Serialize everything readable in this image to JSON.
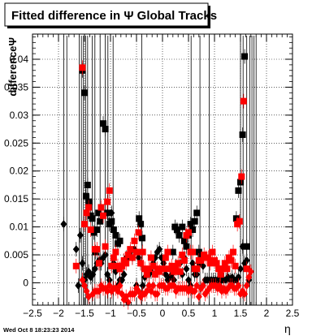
{
  "chart_data": {
    "type": "scatter",
    "title": "Fitted difference in  Ψ   Global Tracks",
    "ylabel": "differenceΨ",
    "xlabel": "η",
    "footer": "Wed Oct  8 18:23:23 2014",
    "xlim": [
      -2.5,
      2.5
    ],
    "ylim": [
      -0.004,
      0.0445
    ],
    "x_ticks": [
      "−2.5",
      "−2",
      "−1.5",
      "−1",
      "−0.5",
      "0",
      "0.5",
      "1",
      "1.5",
      "2",
      "2.5"
    ],
    "y_ticks": [
      "0",
      "0.005",
      "0.01",
      "0.015",
      "0.02",
      "0.025",
      "0.03",
      "0.035",
      "0.04"
    ],
    "grid": true,
    "series": [
      {
        "marker": "square",
        "color": "#000000",
        "x": [
          -1.54,
          -1.5,
          -1.47,
          -1.44,
          -1.41,
          -1.38,
          -1.35,
          -1.32,
          -1.29,
          -1.26,
          -1.23,
          -1.2,
          -1.14,
          -1.1,
          -1.06,
          -1.02,
          -0.98,
          -0.94,
          -0.9,
          -0.86,
          -0.82,
          -0.45,
          -0.42,
          -0.39,
          0.2,
          0.24,
          0.28,
          0.32,
          0.38,
          0.42,
          0.46,
          0.5,
          0.54,
          0.58,
          0.62,
          0.66,
          0.7,
          0.74,
          1.42,
          1.46,
          1.5,
          1.54,
          1.58,
          1.62
        ],
        "y": [
          0.038,
          0.034,
          0.0155,
          0.0175,
          0.0145,
          0.012,
          0.0115,
          0.009,
          0.0055,
          0.0095,
          0.0125,
          0.011,
          0.0285,
          0.0275,
          0.0125,
          0.0105,
          0.011,
          0.0095,
          0.0085,
          0.007,
          0.0075,
          0.0115,
          0.0105,
          0.008,
          0.0055,
          0.01,
          0.0095,
          0.0085,
          0.01,
          0.0075,
          0.0065,
          0.0085,
          0.0105,
          0.0095,
          0.011,
          0.0125,
          0.0055,
          0.0045,
          0.0115,
          0.0165,
          0.018,
          0.0265,
          0.0405,
          0.0065
        ]
      },
      {
        "marker": "square",
        "color": "#ff0000",
        "x": [
          -1.66,
          -1.54,
          -1.5,
          -1.46,
          -1.42,
          -1.38,
          -1.3,
          -1.26,
          -1.22,
          -1.18,
          -1.14,
          -1.1,
          -1.06,
          -1.02,
          -0.98,
          -0.94,
          -0.9,
          -0.86,
          -0.82,
          -0.78,
          -0.74,
          -0.7,
          -0.66,
          -0.62,
          -0.58,
          -0.54,
          -0.5,
          -0.46,
          -0.42,
          -0.38,
          -0.34,
          -0.3,
          -0.26,
          -0.22,
          -0.18,
          -0.14,
          -0.1,
          -0.06,
          0.02,
          0.06,
          0.1,
          0.14,
          0.18,
          0.22,
          0.26,
          0.3,
          0.34,
          0.38,
          0.42,
          0.46,
          0.5,
          0.54,
          0.58,
          0.62,
          0.66,
          0.7,
          0.74,
          0.8,
          0.84,
          0.88,
          0.92,
          0.96,
          1.0,
          1.04,
          1.08,
          1.12,
          1.16,
          1.2,
          1.24,
          1.28,
          1.32,
          1.36,
          1.4,
          1.44,
          1.48,
          1.52,
          1.56,
          1.62
        ],
        "y": [
          0.003,
          0.0385,
          0.0105,
          0.0125,
          0.0135,
          0.0095,
          0.006,
          0.006,
          0.0035,
          0.0135,
          0.012,
          0.0065,
          0.0145,
          0.0165,
          0.003,
          0.0045,
          0.0055,
          0.003,
          0.0025,
          0.003,
          0.004,
          0.0035,
          0.005,
          0.006,
          0.0045,
          0.0075,
          0.0055,
          0.009,
          0.0035,
          0.0055,
          0.0025,
          0.0015,
          0.0025,
          0.0045,
          0.003,
          0.0015,
          0.0025,
          0.002,
          0.0025,
          0.0045,
          0.0055,
          0.0025,
          0.003,
          0.002,
          0.0025,
          0.0035,
          0.002,
          0.005,
          0.004,
          0.0085,
          0.009,
          0.0055,
          0.0055,
          0.0025,
          0.0025,
          0.004,
          0.004,
          0.005,
          0.0045,
          0.0045,
          0.0035,
          0.0055,
          0.004,
          0.0035,
          0.0025,
          0.0015,
          0.0025,
          0.0035,
          0.0025,
          0.0045,
          0.004,
          0.0055,
          0.003,
          0.0105,
          0.011,
          0.019,
          0.0325,
          0.0025
        ]
      },
      {
        "marker": "diamond",
        "color": "#000000",
        "x": [
          -1.9,
          -1.66,
          -1.62,
          -1.58,
          -1.54,
          -1.5,
          -1.46,
          -1.42,
          -1.38,
          -1.34,
          -1.3,
          -1.26,
          -1.22,
          -1.18,
          -1.14,
          -1.1,
          -1.06,
          -1.02,
          -0.98,
          -0.94,
          -0.9,
          -0.86,
          -0.82,
          -0.78,
          -0.74,
          -0.7,
          -0.66,
          -0.62,
          -0.58,
          -0.54,
          -0.5,
          -0.46,
          -0.42,
          -0.38,
          -0.34,
          -0.3,
          -0.26,
          -0.22,
          -0.18,
          -0.14,
          -0.1,
          -0.06,
          -0.02,
          0.02,
          0.06,
          0.1,
          0.14,
          0.18,
          0.22,
          0.26,
          0.3,
          0.34,
          0.38,
          0.42,
          0.46,
          0.5,
          0.54,
          0.58,
          0.62,
          0.66,
          0.7,
          0.74,
          0.78,
          0.82,
          0.86,
          0.9,
          0.94,
          0.98,
          1.02,
          1.06,
          1.1,
          1.14,
          1.18,
          1.22,
          1.26,
          1.3,
          1.34,
          1.38,
          1.42,
          1.46,
          1.5,
          1.54,
          1.58,
          1.62,
          1.66
        ],
        "y": [
          0.0105,
          0.006,
          -0.0005,
          0.0085,
          0.0035,
          0.0005,
          0.0015,
          0.002,
          0.001,
          0.0015,
          0.0025,
          0.0035,
          0.004,
          0.0035,
          0.0045,
          0.005,
          0.0015,
          0.0005,
          0.0125,
          0.0035,
          0.002,
          -0.0005,
          0.0005,
          0.0005,
          0.0015,
          0.0045,
          0.0045,
          0.0055,
          0.0045,
          0.006,
          -0.0005,
          0.0045,
          0.0035,
          -0.0005,
          0.001,
          0.0015,
          0.0015,
          0.002,
          0.0035,
          0.0045,
          0.0055,
          0.006,
          0.0045,
          0.0035,
          0.0015,
          0.0005,
          0.001,
          0.0015,
          0.0005,
          0.003,
          0.002,
          0.0035,
          0.0015,
          0.0045,
          0.0025,
          0.0005,
          -0.0005,
          0.0035,
          0.0015,
          0.0015,
          0.0035,
          0.0045,
          0.003,
          0.0005,
          0.0005,
          0.0005,
          0.0005,
          0.0005,
          0.0005,
          0.0005,
          0.0005,
          0.0005,
          0.0005,
          0.0005,
          0.001,
          0.0005,
          0.001,
          0.0005,
          0.0005,
          0.001,
          0.0025,
          0.0065,
          0.0035,
          0.004,
          0.0005
        ]
      },
      {
        "marker": "diamond",
        "color": "#ff0000",
        "x": [
          -1.54,
          -1.5,
          -1.46,
          -1.42,
          -1.34,
          -1.3,
          -1.26,
          -1.22,
          -1.18,
          -1.14,
          -1.1,
          -1.06,
          -1.02,
          -0.98,
          -0.94,
          -0.9,
          -0.86,
          -0.82,
          -0.78,
          -0.74,
          -0.7,
          -0.66,
          -0.62,
          -0.58,
          -0.54,
          -0.5,
          -0.46,
          -0.42,
          -0.38,
          -0.34,
          -0.3,
          -0.26,
          -0.22,
          -0.18,
          -0.14,
          -0.1,
          -0.06,
          -0.02,
          0.02,
          0.06,
          0.1,
          0.14,
          0.18,
          0.22,
          0.26,
          0.3,
          0.34,
          0.38,
          0.42,
          0.46,
          0.5,
          0.54,
          0.58,
          0.62,
          0.66,
          0.7,
          0.74,
          0.78,
          0.82,
          0.86,
          0.9,
          0.94,
          0.98,
          1.02,
          1.06,
          1.1,
          1.14,
          1.18,
          1.22,
          1.26,
          1.3,
          1.34,
          1.38,
          1.42,
          1.46,
          1.5,
          1.54,
          1.58,
          1.62,
          1.66,
          1.7
        ],
        "y": [
          0.0005,
          -0.0005,
          -0.0015,
          -0.0025,
          -0.002,
          -0.0015,
          -0.0015,
          -0.0015,
          -0.0005,
          -0.001,
          -0.001,
          -0.0015,
          -0.0005,
          -0.0015,
          -0.001,
          -0.001,
          -0.0015,
          -0.0005,
          -0.002,
          -0.003,
          -0.0025,
          -0.0035,
          -0.002,
          -0.002,
          -0.002,
          -0.001,
          -0.0015,
          -0.0025,
          -0.002,
          -0.002,
          -0.0015,
          -0.0005,
          -0.0015,
          -0.0005,
          -0.002,
          -0.002,
          -0.0005,
          -0.0005,
          -0.0005,
          -0.001,
          -0.001,
          -0.0005,
          -0.0005,
          -0.0005,
          -0.0015,
          -0.001,
          -0.001,
          -0.001,
          -0.001,
          -0.001,
          -0.0015,
          -0.001,
          -0.0015,
          -0.0015,
          -0.0005,
          -0.0025,
          -0.001,
          -0.0005,
          -0.002,
          -0.0015,
          -0.001,
          -0.0005,
          -0.0005,
          -0.0005,
          -0.001,
          -0.0005,
          -0.0015,
          -0.001,
          -0.0015,
          -0.001,
          -0.0005,
          -0.0005,
          -0.001,
          -0.001,
          -0.0005,
          -0.002,
          -0.0015,
          -0.002,
          -0.0005,
          0.001,
          0.002
        ]
      }
    ],
    "error_bars_x": [
      -1.9,
      -1.84,
      -1.6,
      -1.56,
      -1.52,
      -1.48,
      -1.44,
      -1.35,
      -1.3,
      -1.2,
      -1.1,
      -1.05,
      -0.95,
      -0.4,
      0.55,
      0.72,
      0.9,
      1.5,
      1.55,
      1.62,
      1.68,
      1.72,
      1.76,
      1.8
    ]
  }
}
